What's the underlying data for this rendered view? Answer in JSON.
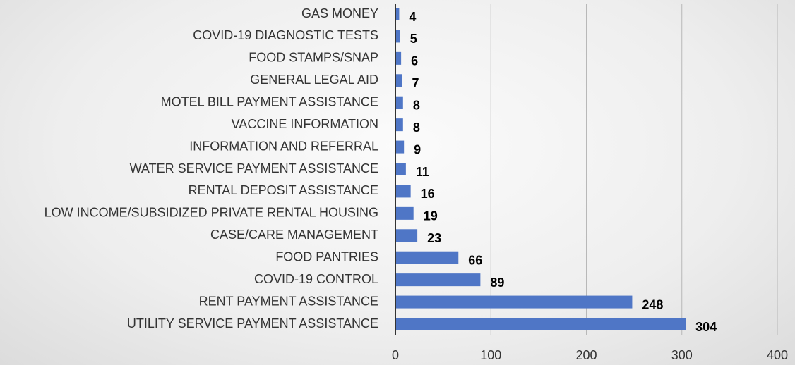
{
  "chart_data": {
    "type": "bar",
    "orientation": "horizontal",
    "categories": [
      "GAS MONEY",
      "COVID-19 DIAGNOSTIC TESTS",
      "FOOD STAMPS/SNAP",
      "GENERAL LEGAL AID",
      "MOTEL BILL PAYMENT ASSISTANCE",
      "VACCINE INFORMATION",
      "INFORMATION AND REFERRAL",
      "WATER SERVICE PAYMENT ASSISTANCE",
      "RENTAL DEPOSIT ASSISTANCE",
      "LOW INCOME/SUBSIDIZED PRIVATE RENTAL HOUSING",
      "CASE/CARE MANAGEMENT",
      "FOOD PANTRIES",
      "COVID-19 CONTROL",
      "RENT PAYMENT ASSISTANCE",
      "UTILITY SERVICE PAYMENT ASSISTANCE"
    ],
    "values": [
      4,
      5,
      6,
      7,
      8,
      8,
      9,
      11,
      16,
      19,
      23,
      66,
      89,
      248,
      304
    ],
    "color": "#4f76c6",
    "xlim": [
      0,
      400
    ],
    "xticks": [
      0,
      100,
      200,
      300,
      400
    ],
    "grid": true
  }
}
